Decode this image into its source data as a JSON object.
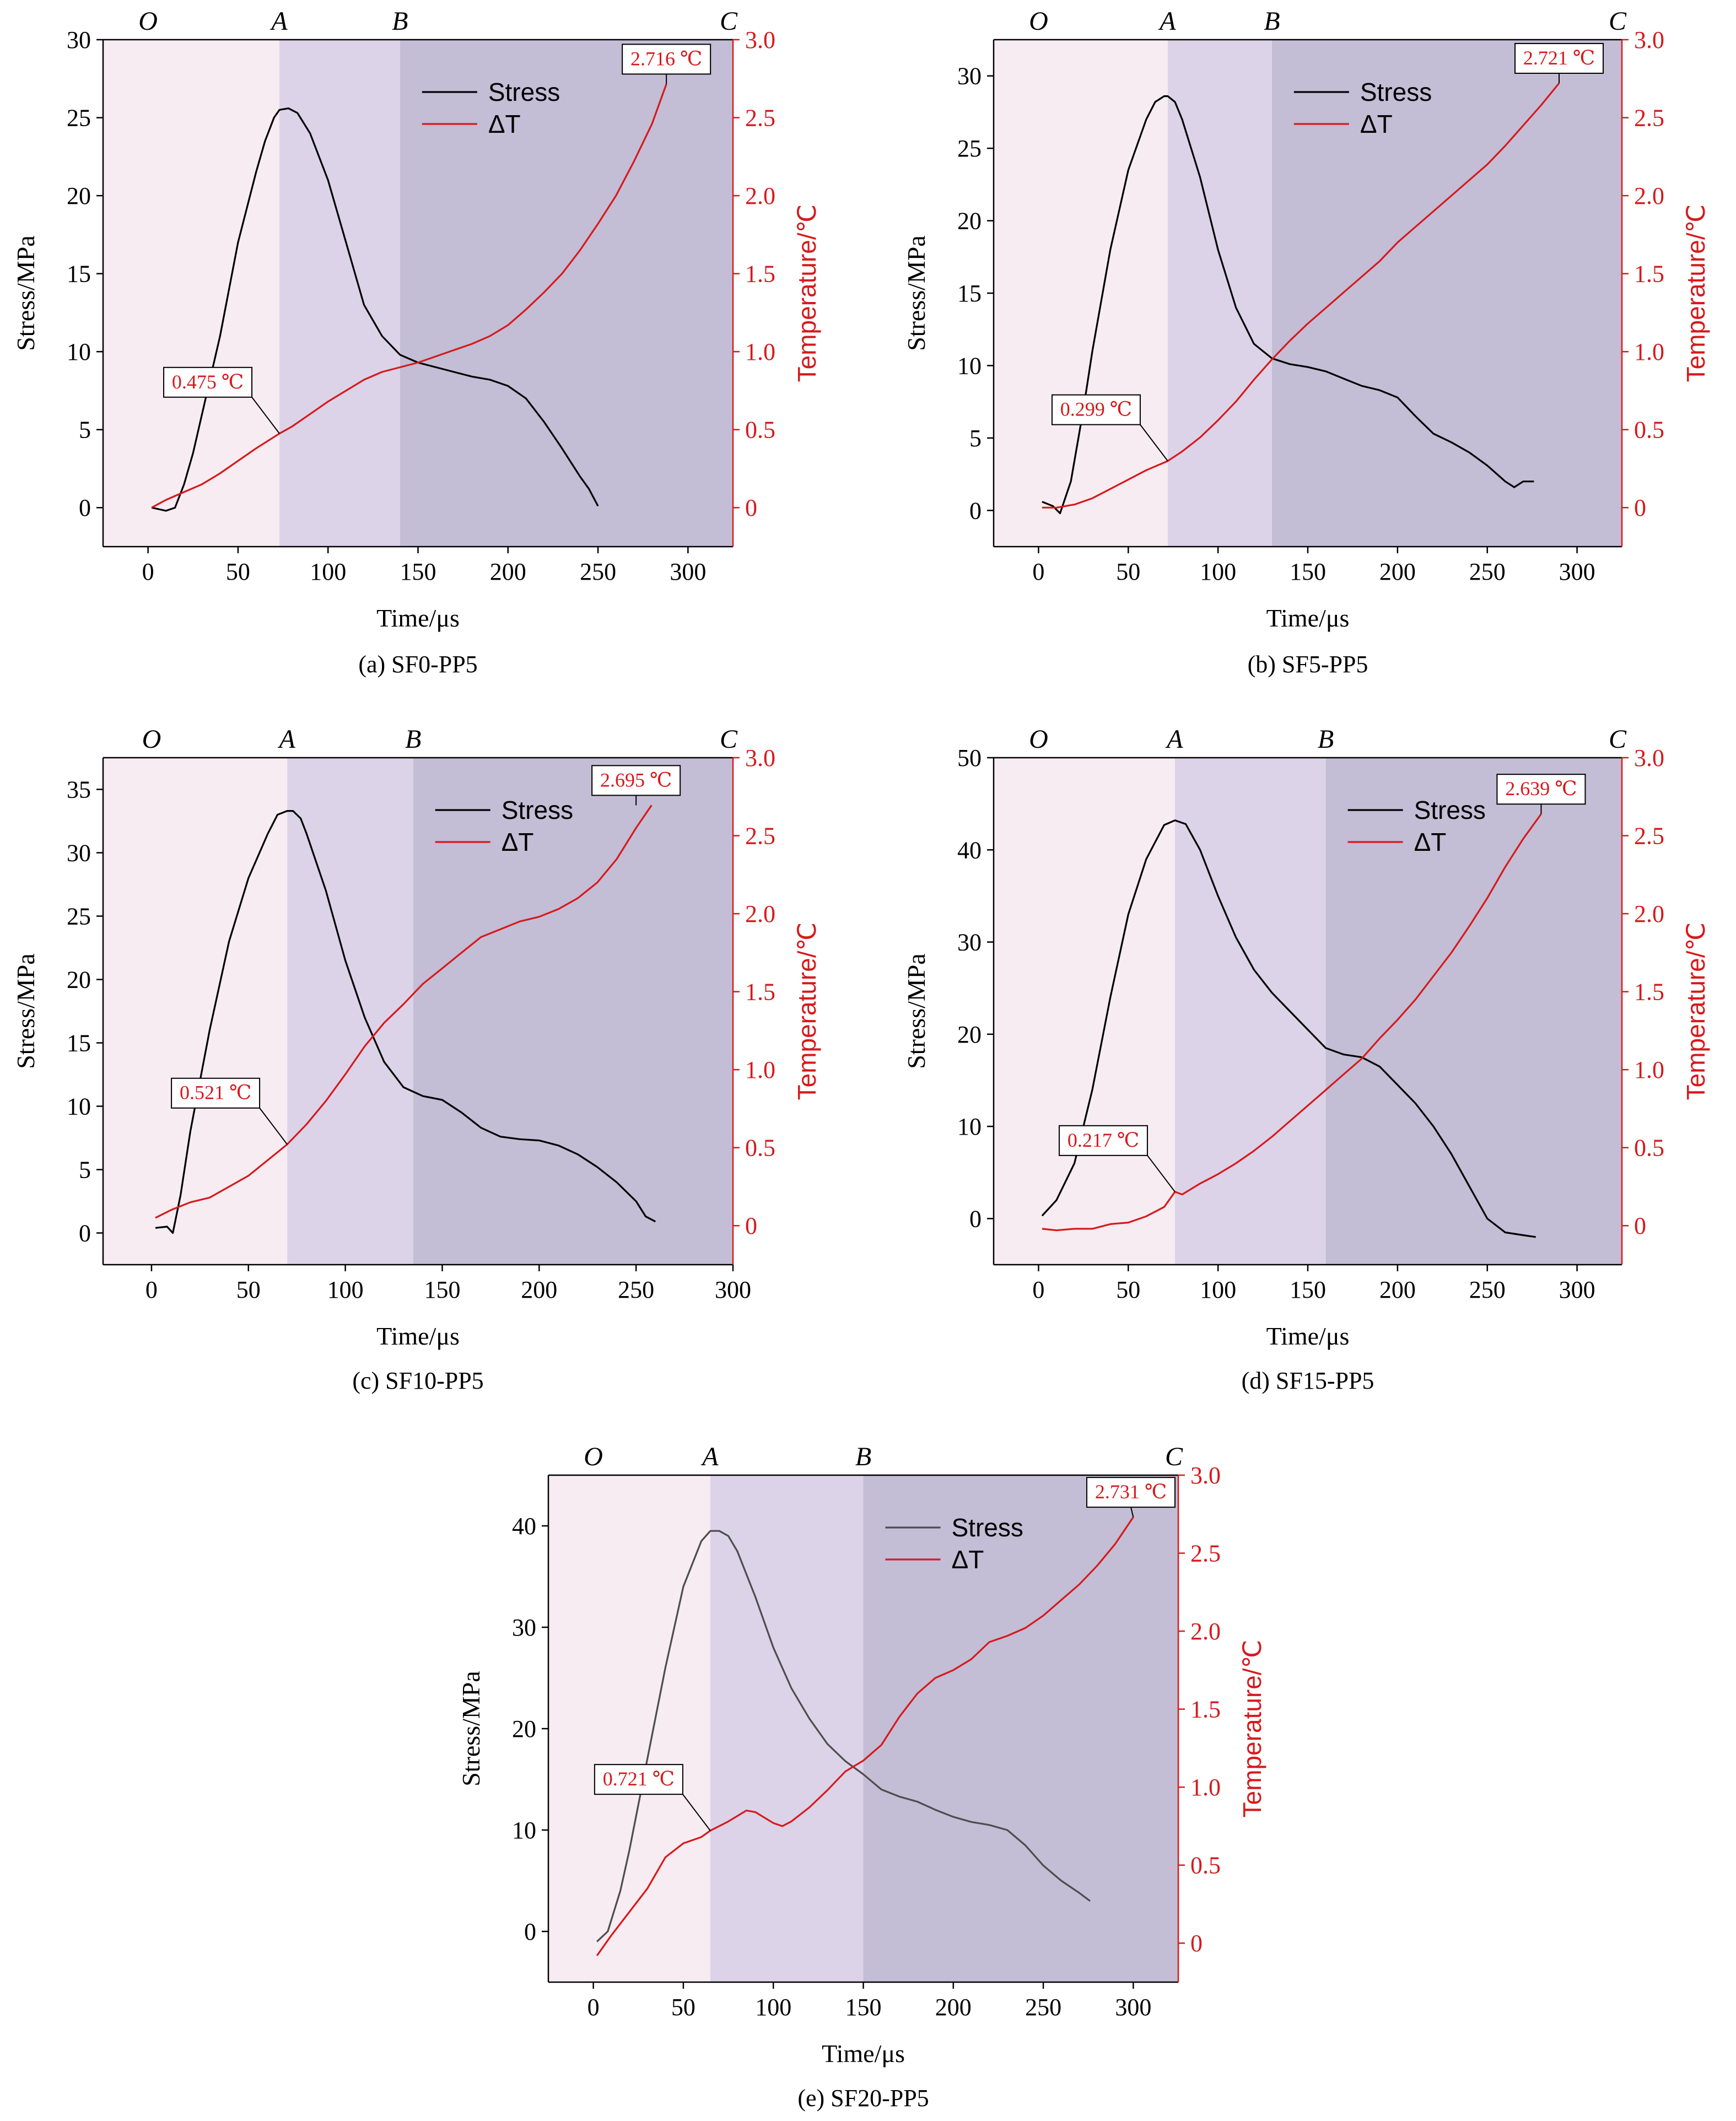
{
  "chart_data": [
    {
      "type": "line",
      "caption": "(a) SF0-PP5",
      "xlabel": "Time/μs",
      "ylabel": "Stress/MPa",
      "ylabel_right": "Temperature/℃",
      "xlim": [
        -25,
        325
      ],
      "ylim": [
        -2.5,
        30
      ],
      "ylim_right": [
        -0.25,
        3.0
      ],
      "x_ticks": [
        "0",
        "50",
        "100",
        "150",
        "200",
        "250",
        "300"
      ],
      "y_ticks": [
        "0",
        "5",
        "10",
        "15",
        "20",
        "25",
        "30"
      ],
      "y_ticks_right": [
        "0",
        "0.5",
        "1.0",
        "1.5",
        "2.0",
        "2.5",
        "3.0"
      ],
      "stage_labels": [
        "O",
        "A",
        "B",
        "C"
      ],
      "stage_x": [
        0,
        73,
        140,
        325
      ],
      "stage_colors": [
        "#f6ecf1",
        "#dcd3e8",
        "#c3bdd5"
      ],
      "legend": [
        "Stress",
        "ΔT"
      ],
      "grid": false,
      "legend_position": "top-right",
      "annotations": [
        {
          "text": "0.475 ℃",
          "x": 73,
          "y": 0.475
        },
        {
          "text": "2.716 ℃",
          "x": 288,
          "y": 2.716
        }
      ],
      "series": [
        {
          "name": "Stress",
          "axis": "left",
          "color": "#000000",
          "x": [
            2,
            10,
            15,
            20,
            25,
            30,
            40,
            50,
            60,
            65,
            70,
            73,
            78,
            83,
            90,
            100,
            110,
            120,
            130,
            140,
            150,
            160,
            170,
            180,
            190,
            200,
            210,
            220,
            230,
            240,
            245,
            250
          ],
          "y": [
            0,
            -0.2,
            0,
            1.5,
            3.5,
            6,
            11,
            17,
            21.5,
            23.5,
            25,
            25.5,
            25.6,
            25.3,
            24,
            21,
            17,
            13,
            11,
            9.8,
            9.3,
            9,
            8.7,
            8.4,
            8.2,
            7.8,
            7,
            5.5,
            3.8,
            2,
            1.2,
            0.1
          ]
        },
        {
          "name": "ΔT",
          "axis": "right",
          "color": "#d7191c",
          "x": [
            2,
            10,
            20,
            30,
            40,
            50,
            60,
            73,
            80,
            90,
            100,
            110,
            120,
            130,
            140,
            150,
            160,
            170,
            180,
            190,
            200,
            210,
            220,
            230,
            240,
            250,
            260,
            270,
            280,
            288
          ],
          "y": [
            0,
            0.05,
            0.1,
            0.15,
            0.22,
            0.3,
            0.38,
            0.475,
            0.52,
            0.6,
            0.68,
            0.75,
            0.82,
            0.87,
            0.9,
            0.93,
            0.97,
            1.01,
            1.05,
            1.1,
            1.17,
            1.27,
            1.38,
            1.5,
            1.65,
            1.82,
            2.0,
            2.22,
            2.46,
            2.716
          ]
        }
      ]
    },
    {
      "type": "line",
      "caption": "(b) SF5-PP5",
      "xlabel": "Time/μs",
      "ylabel": "Stress/MPa",
      "ylabel_right": "Temperature/℃",
      "xlim": [
        -25,
        325
      ],
      "ylim": [
        -2.5,
        32.5
      ],
      "ylim_right": [
        -0.25,
        3.0
      ],
      "x_ticks": [
        "0",
        "50",
        "100",
        "150",
        "200",
        "250",
        "300"
      ],
      "y_ticks": [
        "0",
        "5",
        "10",
        "15",
        "20",
        "25",
        "30"
      ],
      "y_ticks_right": [
        "0",
        "0.5",
        "1.0",
        "1.5",
        "2.0",
        "2.5",
        "3.0"
      ],
      "stage_labels": [
        "O",
        "A",
        "B",
        "C"
      ],
      "stage_x": [
        0,
        72,
        130,
        325
      ],
      "stage_colors": [
        "#f6ecf1",
        "#dcd3e8",
        "#c3bdd5"
      ],
      "legend": [
        "Stress",
        "ΔT"
      ],
      "grid": false,
      "legend_position": "top-right",
      "annotations": [
        {
          "text": "0.299 ℃",
          "x": 72,
          "y": 0.299
        },
        {
          "text": "2.721 ℃",
          "x": 290,
          "y": 2.721
        }
      ],
      "series": [
        {
          "name": "Stress",
          "axis": "left",
          "color": "#000000",
          "x": [
            2,
            8,
            12,
            18,
            25,
            30,
            40,
            50,
            60,
            65,
            70,
            72,
            76,
            80,
            90,
            100,
            110,
            120,
            130,
            140,
            150,
            160,
            170,
            180,
            190,
            200,
            210,
            220,
            230,
            240,
            250,
            260,
            265,
            270,
            276
          ],
          "y": [
            0.6,
            0.3,
            -0.2,
            2,
            7,
            11,
            18,
            23.5,
            27,
            28.2,
            28.6,
            28.6,
            28.2,
            27,
            23,
            18,
            14,
            11.5,
            10.5,
            10.1,
            9.9,
            9.6,
            9.1,
            8.6,
            8.3,
            7.8,
            6.5,
            5.3,
            4.7,
            4,
            3.1,
            2.0,
            1.6,
            2.0,
            2.0
          ]
        },
        {
          "name": "ΔT",
          "axis": "right",
          "color": "#d7191c",
          "x": [
            2,
            10,
            20,
            30,
            40,
            50,
            60,
            72,
            80,
            90,
            100,
            110,
            120,
            130,
            140,
            150,
            160,
            170,
            180,
            190,
            200,
            210,
            220,
            230,
            240,
            250,
            260,
            270,
            280,
            290
          ],
          "y": [
            0,
            0,
            0.02,
            0.06,
            0.12,
            0.18,
            0.24,
            0.299,
            0.36,
            0.45,
            0.56,
            0.68,
            0.82,
            0.95,
            1.07,
            1.18,
            1.28,
            1.38,
            1.48,
            1.58,
            1.7,
            1.8,
            1.9,
            2.0,
            2.1,
            2.2,
            2.32,
            2.45,
            2.58,
            2.721
          ]
        }
      ]
    },
    {
      "type": "line",
      "caption": "(c) SF10-PP5",
      "xlabel": "Time/μs",
      "ylabel": "Stress/MPa",
      "ylabel_right": "Temperature/℃",
      "xlim": [
        -25,
        300
      ],
      "ylim": [
        -2.5,
        37.5
      ],
      "ylim_right": [
        -0.25,
        3.0
      ],
      "x_ticks": [
        "0",
        "50",
        "100",
        "150",
        "200",
        "250",
        "300"
      ],
      "y_ticks": [
        "0",
        "5",
        "10",
        "15",
        "20",
        "25",
        "30",
        "35"
      ],
      "y_ticks_right": [
        "0",
        "0.5",
        "1.0",
        "1.5",
        "2.0",
        "2.5",
        "3.0"
      ],
      "stage_labels": [
        "O",
        "A",
        "B",
        "C"
      ],
      "stage_x": [
        0,
        70,
        135,
        300
      ],
      "stage_colors": [
        "#f6ecf1",
        "#dcd3e8",
        "#c3bdd5"
      ],
      "legend": [
        "Stress",
        "ΔT"
      ],
      "grid": false,
      "legend_position": "top-right",
      "annotations": [
        {
          "text": "0.521 ℃",
          "x": 70,
          "y": 0.521
        },
        {
          "text": "2.695 ℃",
          "x": 250,
          "y": 2.695
        }
      ],
      "series": [
        {
          "name": "Stress",
          "axis": "left",
          "color": "#000000",
          "x": [
            2,
            8,
            11,
            15,
            20,
            30,
            40,
            50,
            60,
            65,
            70,
            73,
            77,
            80,
            90,
            100,
            110,
            120,
            130,
            140,
            150,
            160,
            170,
            180,
            190,
            200,
            210,
            220,
            230,
            240,
            250,
            255,
            260
          ],
          "y": [
            0.4,
            0.5,
            0,
            3,
            8,
            16,
            23,
            28,
            31.5,
            33,
            33.3,
            33.3,
            32.7,
            31.5,
            27,
            21.5,
            17,
            13.5,
            11.5,
            10.8,
            10.5,
            9.5,
            8.3,
            7.6,
            7.4,
            7.3,
            6.9,
            6.2,
            5.2,
            4,
            2.5,
            1.3,
            0.9
          ]
        },
        {
          "name": "ΔT",
          "axis": "right",
          "color": "#d7191c",
          "x": [
            2,
            10,
            20,
            30,
            40,
            50,
            60,
            70,
            80,
            90,
            100,
            110,
            120,
            130,
            140,
            150,
            160,
            170,
            180,
            190,
            200,
            210,
            220,
            230,
            240,
            250,
            258
          ],
          "y": [
            0.05,
            0.1,
            0.15,
            0.18,
            0.25,
            0.32,
            0.42,
            0.521,
            0.65,
            0.8,
            0.97,
            1.15,
            1.3,
            1.42,
            1.55,
            1.65,
            1.75,
            1.85,
            1.9,
            1.95,
            1.98,
            2.03,
            2.1,
            2.2,
            2.35,
            2.55,
            2.695
          ]
        }
      ]
    },
    {
      "type": "line",
      "caption": "(d) SF15-PP5",
      "xlabel": "Time/μs",
      "ylabel": "Stress/MPa",
      "ylabel_right": "Temperature/℃",
      "xlim": [
        -25,
        325
      ],
      "ylim": [
        -5,
        50
      ],
      "ylim_right": [
        -0.25,
        3.0
      ],
      "x_ticks": [
        "0",
        "50",
        "100",
        "150",
        "200",
        "250",
        "300"
      ],
      "y_ticks": [
        "0",
        "10",
        "20",
        "30",
        "40",
        "50"
      ],
      "y_ticks_right": [
        "0",
        "0.5",
        "1.0",
        "1.5",
        "2.0",
        "2.5",
        "3.0"
      ],
      "stage_labels": [
        "O",
        "A",
        "B",
        "C"
      ],
      "stage_x": [
        0,
        76,
        160,
        325
      ],
      "stage_colors": [
        "#f6ecf1",
        "#dcd3e8",
        "#c3bdd5"
      ],
      "legend": [
        "Stress",
        "ΔT"
      ],
      "grid": false,
      "legend_position": "top-right",
      "annotations": [
        {
          "text": "0.217 ℃",
          "x": 76,
          "y": 0.217
        },
        {
          "text": "2.639 ℃",
          "x": 280,
          "y": 2.639
        }
      ],
      "series": [
        {
          "name": "Stress",
          "axis": "left",
          "color": "#000000",
          "x": [
            2,
            10,
            20,
            30,
            40,
            50,
            60,
            70,
            76,
            82,
            90,
            100,
            110,
            120,
            130,
            140,
            150,
            160,
            170,
            180,
            190,
            200,
            210,
            220,
            230,
            240,
            250,
            260,
            270,
            277
          ],
          "y": [
            0.3,
            2,
            6,
            14,
            24,
            33,
            39,
            42.7,
            43.2,
            42.8,
            40,
            35,
            30.5,
            27,
            24.5,
            22.5,
            20.5,
            18.5,
            17.8,
            17.5,
            16.5,
            14.5,
            12.5,
            10,
            7,
            3.5,
            0,
            -1.5,
            -1.8,
            -2
          ]
        },
        {
          "name": "ΔT",
          "axis": "right",
          "color": "#d7191c",
          "x": [
            2,
            10,
            20,
            30,
            40,
            50,
            60,
            70,
            76,
            80,
            90,
            100,
            110,
            120,
            130,
            140,
            150,
            160,
            170,
            180,
            190,
            200,
            210,
            220,
            230,
            240,
            250,
            260,
            270,
            280
          ],
          "y": [
            -0.02,
            -0.03,
            -0.02,
            -0.02,
            0.01,
            0.02,
            0.06,
            0.12,
            0.217,
            0.2,
            0.27,
            0.33,
            0.4,
            0.48,
            0.57,
            0.67,
            0.77,
            0.87,
            0.97,
            1.07,
            1.2,
            1.32,
            1.45,
            1.6,
            1.75,
            1.92,
            2.1,
            2.3,
            2.48,
            2.639
          ]
        }
      ]
    },
    {
      "type": "line",
      "caption": "(e) SF20-PP5",
      "xlabel": "Time/μs",
      "ylabel": "Stress/MPa",
      "ylabel_right": "Temperature/℃",
      "xlim": [
        -25,
        325
      ],
      "ylim": [
        -5,
        45
      ],
      "ylim_right": [
        -0.25,
        3.0
      ],
      "x_ticks": [
        "0",
        "50",
        "100",
        "150",
        "200",
        "250",
        "300"
      ],
      "y_ticks": [
        "0",
        "10",
        "20",
        "30",
        "40"
      ],
      "y_ticks_right": [
        "0",
        "0.5",
        "1.0",
        "1.5",
        "2.0",
        "2.5",
        "3.0"
      ],
      "stage_labels": [
        "O",
        "A",
        "B",
        "C"
      ],
      "stage_x": [
        0,
        65,
        150,
        325
      ],
      "stage_colors": [
        "#f6ecf1",
        "#dcd3e8",
        "#c3bdd5"
      ],
      "legend": [
        "Stress",
        "ΔT"
      ],
      "grid": false,
      "legend_position": "top-right",
      "annotations": [
        {
          "text": "0.721 ℃",
          "x": 65,
          "y": 0.721
        },
        {
          "text": "2.731 ℃",
          "x": 300,
          "y": 2.731
        }
      ],
      "series": [
        {
          "name": "Stress",
          "axis": "left",
          "color": "#4d4d4d",
          "x": [
            2,
            8,
            15,
            20,
            30,
            40,
            50,
            60,
            65,
            70,
            75,
            80,
            90,
            100,
            110,
            120,
            130,
            140,
            150,
            160,
            170,
            180,
            190,
            200,
            210,
            220,
            230,
            240,
            250,
            260,
            270,
            276
          ],
          "y": [
            -1,
            0,
            4,
            8,
            17,
            26,
            34,
            38.5,
            39.5,
            39.5,
            39,
            37.5,
            33,
            28,
            24,
            21,
            18.5,
            16.8,
            15.5,
            14,
            13.3,
            12.8,
            12,
            11.3,
            10.8,
            10.5,
            10,
            8.5,
            6.5,
            5,
            3.8,
            3
          ]
        },
        {
          "name": "ΔT",
          "axis": "right",
          "color": "#d7191c",
          "x": [
            2,
            10,
            20,
            30,
            40,
            50,
            60,
            65,
            75,
            85,
            90,
            100,
            105,
            110,
            120,
            130,
            140,
            150,
            160,
            170,
            180,
            190,
            200,
            210,
            220,
            230,
            240,
            250,
            260,
            270,
            280,
            290,
            300
          ],
          "y": [
            -0.08,
            0.05,
            0.2,
            0.35,
            0.55,
            0.64,
            0.68,
            0.721,
            0.78,
            0.85,
            0.84,
            0.77,
            0.75,
            0.78,
            0.87,
            0.98,
            1.1,
            1.17,
            1.27,
            1.45,
            1.6,
            1.7,
            1.75,
            1.82,
            1.93,
            1.97,
            2.02,
            2.1,
            2.2,
            2.3,
            2.42,
            2.56,
            2.731
          ]
        }
      ]
    }
  ]
}
